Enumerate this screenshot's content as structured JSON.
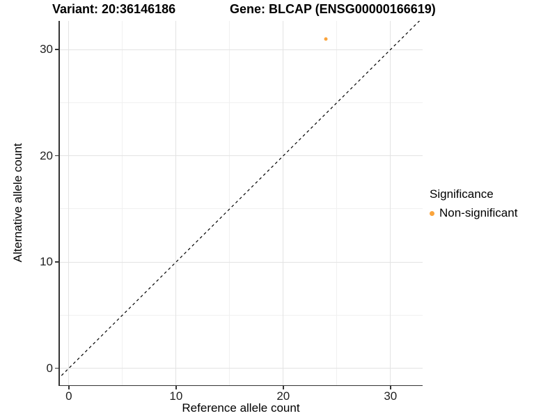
{
  "figure": {
    "title_left": "Variant: 20:36146186",
    "title_right": "Gene: BLCAP (ENSG00000166619)"
  },
  "chart_data": {
    "type": "scatter",
    "title": "Variant: 20:36146186    Gene: BLCAP (ENSG00000166619)",
    "xlabel": "Reference allele count",
    "ylabel": "Alternative allele count",
    "xlim": [
      -0.9,
      33.0
    ],
    "ylim": [
      -1.6,
      32.7
    ],
    "x_ticks": [
      0,
      10,
      20,
      30
    ],
    "y_ticks": [
      0,
      10,
      20,
      30
    ],
    "x_minor_gridlines": [
      5,
      15,
      25
    ],
    "y_minor_gridlines": [
      5,
      15,
      25
    ],
    "grid": true,
    "identity_line": {
      "style": "dashed",
      "equation": "y = x",
      "color": "#000000"
    },
    "series": [
      {
        "name": "Non-significant",
        "color": "#FAA43C",
        "points": [
          {
            "x": 24,
            "y": 31
          }
        ]
      }
    ],
    "legend": {
      "title": "Significance",
      "position": "right",
      "entries": [
        {
          "label": "Non-significant",
          "color": "#FAA43C"
        }
      ]
    }
  }
}
